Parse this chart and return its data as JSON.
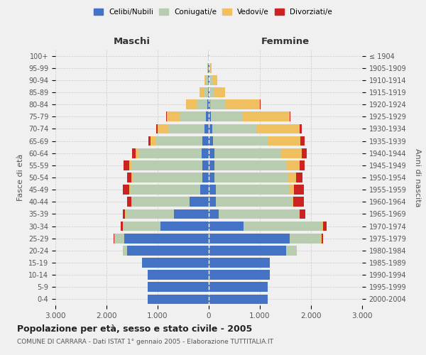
{
  "age_groups": [
    "0-4",
    "5-9",
    "10-14",
    "15-19",
    "20-24",
    "25-29",
    "30-34",
    "35-39",
    "40-44",
    "45-49",
    "50-54",
    "55-59",
    "60-64",
    "65-69",
    "70-74",
    "75-79",
    "80-84",
    "85-89",
    "90-94",
    "95-99",
    "100+"
  ],
  "birth_years": [
    "2000-2004",
    "1995-1999",
    "1990-1994",
    "1985-1989",
    "1980-1984",
    "1975-1979",
    "1970-1974",
    "1965-1969",
    "1960-1964",
    "1955-1959",
    "1950-1954",
    "1945-1949",
    "1940-1944",
    "1935-1939",
    "1930-1934",
    "1925-1929",
    "1920-1924",
    "1915-1919",
    "1910-1914",
    "1905-1909",
    "≤ 1904"
  ],
  "colors": {
    "celibi": "#4472C4",
    "coniugati": "#B8CCB0",
    "vedovi": "#F0C060",
    "divorziati": "#CC2222"
  },
  "males": {
    "celibi": [
      1200,
      1200,
      1200,
      1300,
      1600,
      1650,
      950,
      680,
      380,
      160,
      120,
      120,
      140,
      120,
      85,
      55,
      28,
      18,
      12,
      8,
      4
    ],
    "coniugati": [
      0,
      0,
      0,
      0,
      80,
      200,
      720,
      950,
      1120,
      1380,
      1370,
      1390,
      1220,
      920,
      710,
      520,
      210,
      80,
      38,
      15,
      4
    ],
    "vedovi": [
      0,
      0,
      0,
      0,
      4,
      4,
      4,
      8,
      10,
      18,
      28,
      48,
      68,
      95,
      200,
      250,
      200,
      80,
      38,
      10,
      4
    ],
    "divorziati": [
      0,
      0,
      0,
      0,
      0,
      8,
      55,
      48,
      88,
      128,
      82,
      105,
      78,
      48,
      28,
      10,
      4,
      0,
      0,
      0,
      0
    ]
  },
  "females": {
    "celibi": [
      1150,
      1150,
      1200,
      1200,
      1520,
      1580,
      680,
      200,
      140,
      140,
      115,
      105,
      105,
      88,
      65,
      45,
      28,
      18,
      18,
      10,
      5
    ],
    "coniugati": [
      0,
      0,
      0,
      0,
      200,
      620,
      1540,
      1560,
      1480,
      1440,
      1440,
      1420,
      1310,
      1060,
      860,
      620,
      310,
      100,
      52,
      18,
      4
    ],
    "vedovi": [
      0,
      0,
      0,
      0,
      4,
      10,
      10,
      20,
      30,
      80,
      152,
      248,
      398,
      648,
      848,
      920,
      668,
      198,
      92,
      32,
      10
    ],
    "divorziati": [
      0,
      0,
      0,
      0,
      0,
      28,
      78,
      108,
      208,
      208,
      122,
      102,
      98,
      82,
      48,
      15,
      10,
      4,
      0,
      0,
      0
    ]
  },
  "xlim": 3000,
  "title": "Popolazione per età, sesso e stato civile - 2005",
  "subtitle": "COMUNE DI CARRARA - Dati ISTAT 1° gennaio 2005 - Elaborazione TUTTITALIA.IT",
  "xlabel_left": "Maschi",
  "xlabel_right": "Femmine",
  "ylabel_left": "Fasce di età",
  "ylabel_right": "Anni di nascita",
  "bg_color": "#f0f0f0"
}
